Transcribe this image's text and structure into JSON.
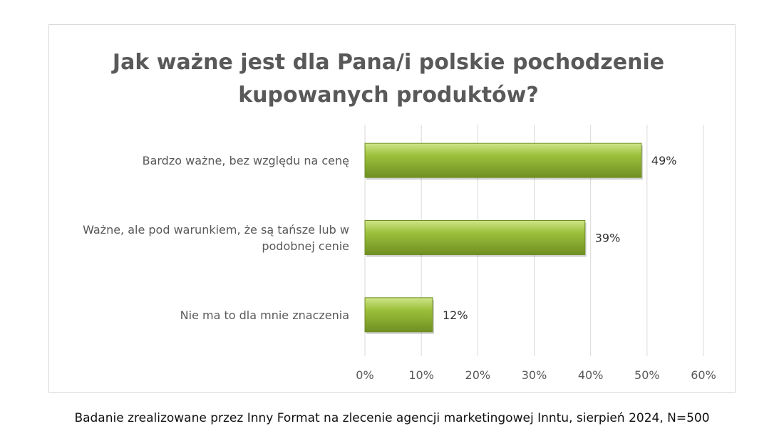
{
  "chart_data": {
    "type": "bar",
    "orientation": "horizontal",
    "title": "Jak ważne jest dla Pana/i polskie pochodzenie kupowanych produktów?",
    "title_lines": [
      "Jak ważne jest dla Pana/i polskie pochodzenie",
      "kupowanych produktów?"
    ],
    "categories": [
      "Bardzo ważne, bez względu na cenę",
      "Ważne, ale pod warunkiem, że są tańsze lub w podobnej cenie",
      "Nie ma to dla mnie znaczenia"
    ],
    "category_lines": [
      [
        "Bardzo ważne, bez względu na cenę"
      ],
      [
        "Ważne, ale pod warunkiem, że są tańsze lub w",
        "podobnej cenie"
      ],
      [
        "Nie ma to dla mnie znaczenia"
      ]
    ],
    "values": [
      49,
      39,
      12
    ],
    "data_labels": [
      "49%",
      "39%",
      "12%"
    ],
    "xlim": [
      0,
      60
    ],
    "ticks": [
      "0%",
      "10%",
      "20%",
      "30%",
      "40%",
      "50%",
      "60%"
    ],
    "xlabel": "",
    "ylabel": "",
    "grid": true,
    "legend": "none",
    "colors": {
      "bar": "#9dc13c",
      "bar_light": "#cfe58a",
      "bar_dark": "#6f8f22",
      "text": "#595959",
      "grid": "#d9d9d9"
    }
  },
  "footer": "Badanie zrealizowane przez Inny Format na zlecenie agencji marketingowej Inntu, sierpień 2024, N=500"
}
